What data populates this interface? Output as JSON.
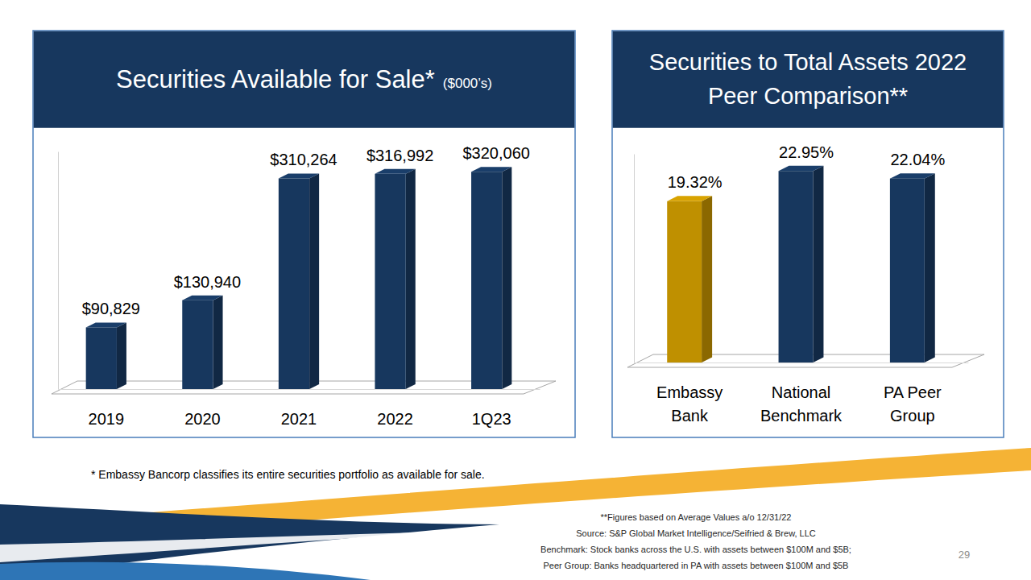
{
  "chart_data": [
    {
      "type": "bar",
      "title": "Securities Available for Sale*",
      "subtitle": "($000’s)",
      "categories": [
        "2019",
        "2020",
        "2021",
        "2022",
        "1Q23"
      ],
      "values": [
        90829,
        130940,
        310264,
        316992,
        320060
      ],
      "value_labels": [
        "$90,829",
        "$130,940",
        "$310,264",
        "$316,992",
        "$320,060"
      ],
      "color": "#17375e",
      "ylim": [
        0,
        350000
      ],
      "yticks": [],
      "data_labels": true,
      "tick_labels": "x"
    },
    {
      "type": "bar",
      "title": "Securities to Total Assets 2022 Peer Comparison**",
      "categories": [
        "Embassy Bank",
        "National Benchmark",
        "PA Peer Group"
      ],
      "values": [
        19.32,
        22.95,
        22.04
      ],
      "value_labels": [
        "19.32%",
        "22.95%",
        "22.04%"
      ],
      "colors": [
        "#bf9000",
        "#17375e",
        "#17375e"
      ],
      "ylim": [
        0,
        25
      ],
      "yticks": [],
      "data_labels": true,
      "tick_labels": "x"
    }
  ],
  "footnote": "* Embassy Bancorp classifies its entire securities portfolio as available for sale.",
  "notes": [
    "**Figures based on Average Values a/o 12/31/22",
    "Source: S&P Global Market Intelligence/Seifried & Brew, LLC",
    "Benchmark: Stock banks across the U.S. with assets between  $100M and $5B;",
    "Peer Group: Banks headquartered in PA  with assets between $100M and $5B"
  ],
  "page_number": 29
}
